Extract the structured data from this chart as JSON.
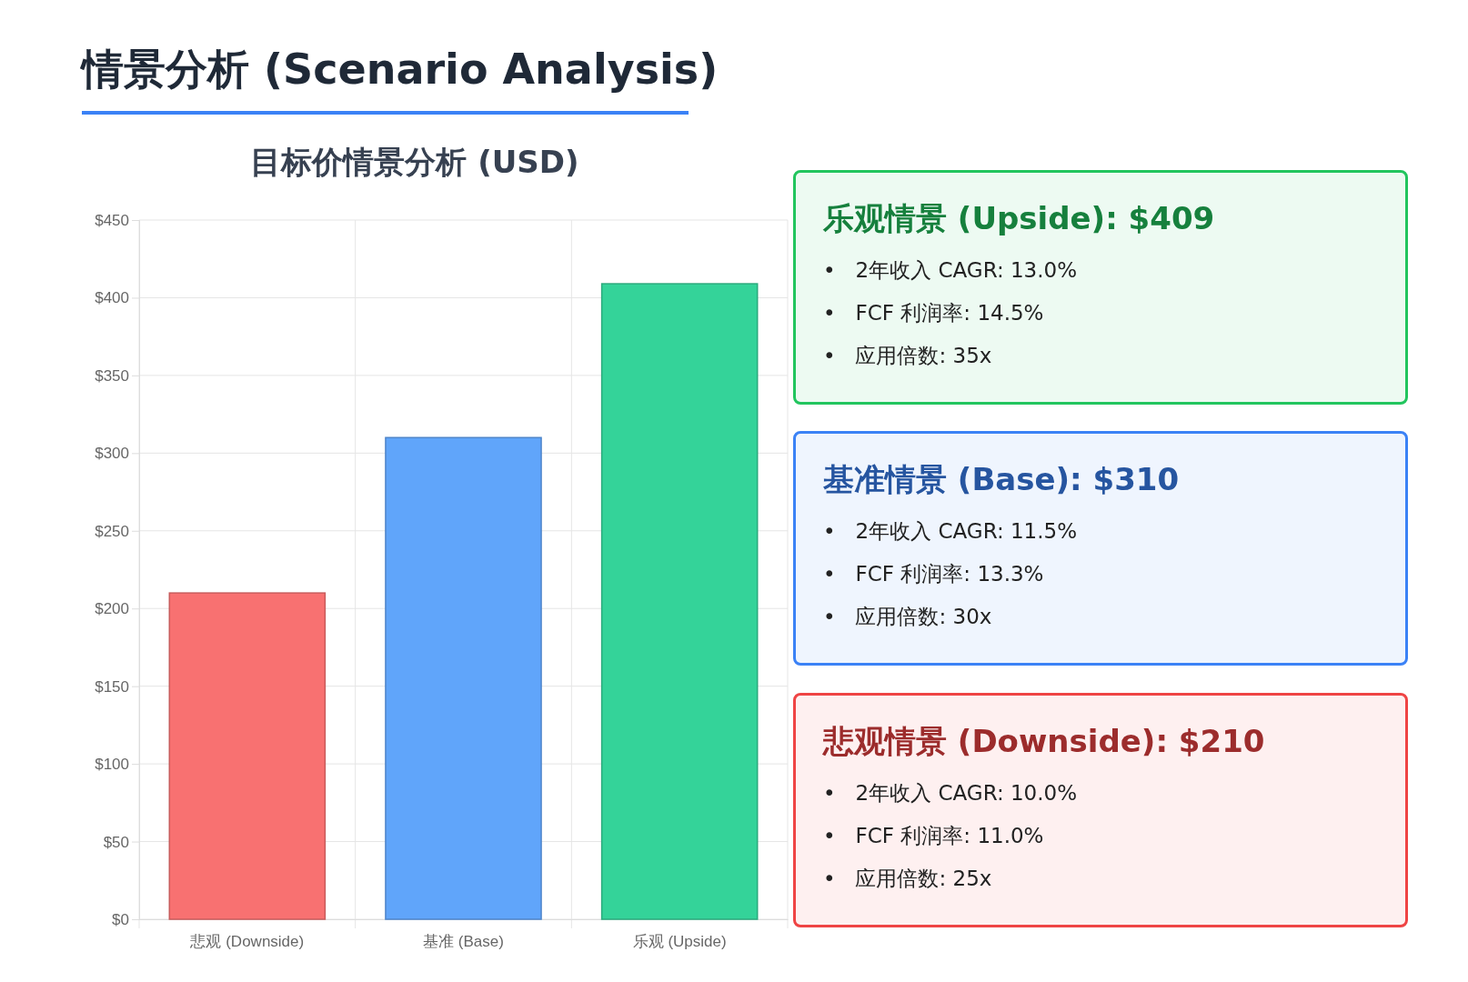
{
  "chart_data": [
    {
      "type": "bar",
      "title": "情景分析 (Scenario Analysis)",
      "subtitle": "目标价情景分析 (USD)",
      "categories": [
        "悲观 (Downside)",
        "基准 (Base)",
        "乐观 (Upside)"
      ],
      "values": [
        210,
        310,
        409
      ],
      "colors": [
        "#f87171",
        "#60a5fa",
        "#34d399"
      ],
      "ylim": [
        0,
        450
      ],
      "yticks": [
        {
          "value": 0,
          "label": "$0"
        },
        {
          "value": 50,
          "label": "$50"
        },
        {
          "value": 100,
          "label": "$100"
        },
        {
          "value": 150,
          "label": "$150"
        },
        {
          "value": 200,
          "label": "$200"
        },
        {
          "value": 250,
          "label": "$250"
        },
        {
          "value": 300,
          "label": "$300"
        },
        {
          "value": 350,
          "label": "$350"
        },
        {
          "value": 400,
          "label": "$400"
        },
        {
          "value": 450,
          "label": "$450"
        }
      ],
      "grid": true
    },
    {
      "type": "other",
      "title": "乐观情景 (Upside): $409",
      "color": "#22c55e",
      "annotations": [
        "•   2年收入 CAGR: 13.0%",
        "•   FCF 利润率: 14.5%",
        "•   应用倍数: 35x"
      ]
    },
    {
      "type": "other",
      "title": "基准情景 (Base): $310",
      "color": "#3b82f6",
      "annotations": [
        "•   2年收入 CAGR: 11.5%",
        "•   FCF 利润率: 13.3%",
        "•   应用倍数: 30x"
      ]
    },
    {
      "type": "other",
      "title": "悲观情景 (Downside): $210",
      "color": "#ef4444",
      "annotations": [
        "•   2年收入 CAGR: 10.0%",
        "•   FCF 利润率: 11.0%",
        "•   应用倍数: 25x"
      ]
    }
  ]
}
